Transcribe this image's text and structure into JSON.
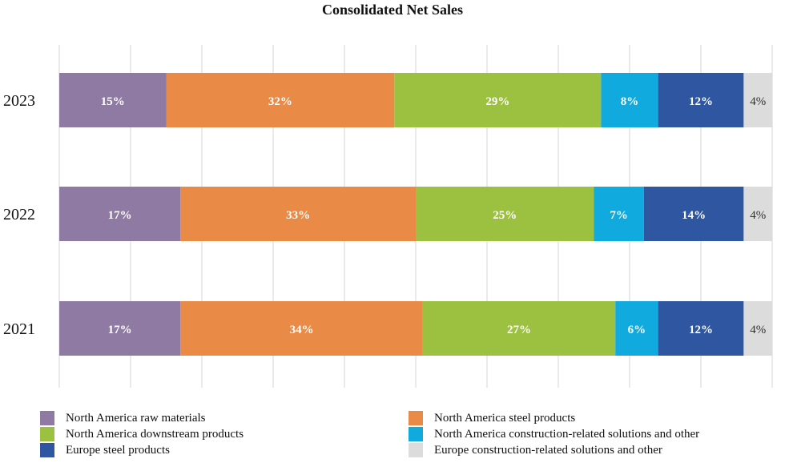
{
  "chart_data": {
    "type": "bar",
    "orientation": "horizontal",
    "stacked": true,
    "title": "Consolidated Net Sales",
    "categories": [
      "2023",
      "2022",
      "2021"
    ],
    "series": [
      {
        "name": "North America raw materials",
        "color": "#8e7aa3",
        "values": [
          15,
          17,
          17
        ],
        "labels": [
          "15%",
          "17%",
          "17%"
        ]
      },
      {
        "name": "North America steel products",
        "color": "#e98b47",
        "values": [
          32,
          33,
          34
        ],
        "labels": [
          "32%",
          "33%",
          "34%"
        ]
      },
      {
        "name": "North America downstream products",
        "color": "#9cc03f",
        "values": [
          29,
          25,
          27
        ],
        "labels": [
          "29%",
          "25%",
          "27%"
        ]
      },
      {
        "name": "North America construction-related solutions and other",
        "color": "#10aadf",
        "values": [
          8,
          7,
          6
        ],
        "labels": [
          "8%",
          "7%",
          "6%"
        ]
      },
      {
        "name": "Europe steel products",
        "color": "#2f56a0",
        "values": [
          12,
          14,
          12
        ],
        "labels": [
          "12%",
          "14%",
          "12%"
        ]
      },
      {
        "name": "Europe construction-related solutions and other",
        "color": "#dcdcdc",
        "values": [
          4,
          4,
          4
        ],
        "labels": [
          "4%",
          "4%",
          "4%"
        ]
      }
    ],
    "xlim": [
      0,
      100
    ],
    "grid": true,
    "legend_position": "bottom"
  }
}
